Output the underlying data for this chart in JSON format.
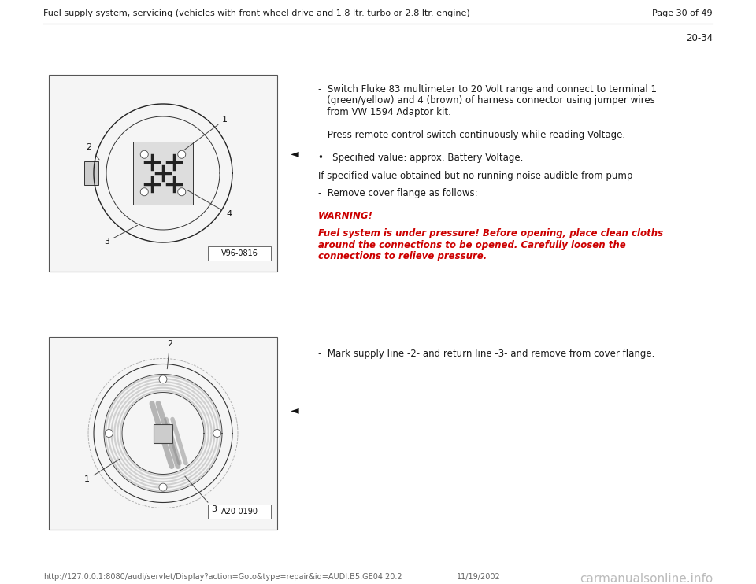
{
  "bg_color": "#ffffff",
  "header_text": "Fuel supply system, servicing (vehicles with front wheel drive and 1.8 ltr. turbo or 2.8 ltr. engine)",
  "header_page": "Page 30 of 49",
  "page_num": "20-34",
  "footer_url": "http://127.0.0.1:8080/audi/servlet/Display?action=Goto&type=repair&id=AUDI.B5.GE04.20.2",
  "footer_date": "11/19/2002",
  "footer_logo": "carmanualsonline.info",
  "bullet1_lines": [
    "-  Switch Fluke 83 multimeter to 20 Volt range and connect to terminal 1",
    "   (green/yellow) and 4 (brown) of harness connector using jumper wires",
    "   from VW 1594 Adaptor kit.",
    "",
    "-  Press remote control switch continuously while reading Voltage.",
    "",
    "•   Specified value: approx. Battery Voltage."
  ],
  "ifspec_text": "If specified value obtained but no running noise audible from pump",
  "remove_text": "-  Remove cover flange as follows:",
  "warning_title": "WARNING!",
  "warning_line1": "Fuel system is under pressure! Before opening, place clean cloths",
  "warning_line2": "around the connections to be opened. Carefully loosen the",
  "warning_line3": "connections to relieve pressure.",
  "bullet2_line": "-  Mark supply line -2- and return line -3- and remove from cover flange.",
  "img1_label": "V96-0816",
  "img2_label": "A20-0190",
  "text_color": "#1a1a1a",
  "red_color": "#cc0000",
  "line_color": "#888888",
  "img_border_color": "#555555",
  "header_fontsize": 8.0,
  "body_fontsize": 8.5,
  "footer_fontsize": 7.0,
  "logo_fontsize": 11.0
}
